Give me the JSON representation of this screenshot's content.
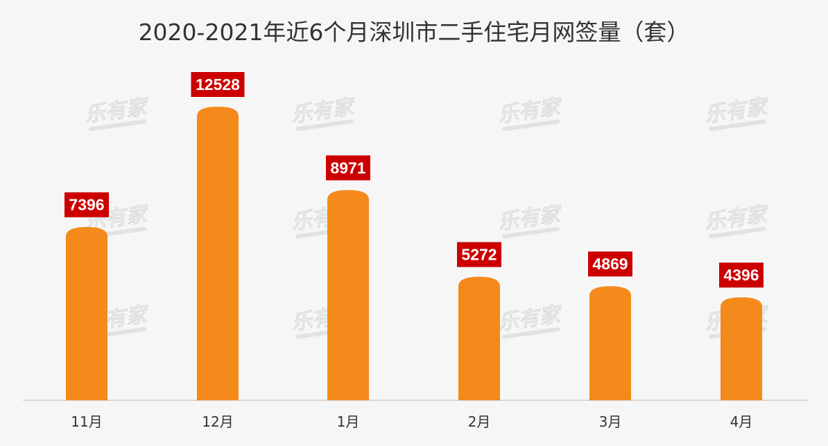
{
  "chart_data": {
    "type": "bar",
    "title": "2020-2021年近6个月深圳市二手住宅月网签量（套）",
    "categories": [
      "11月",
      "12月",
      "1月",
      "2月",
      "3月",
      "4月"
    ],
    "values": [
      7396,
      12528,
      8971,
      5272,
      4869,
      4396
    ],
    "data_labels": [
      "7396",
      "12528",
      "8971",
      "5272",
      "4869",
      "4396"
    ],
    "xlabel": "",
    "ylabel": "",
    "ylim": [
      0,
      13500
    ],
    "grid": false,
    "legend": "none",
    "colors": {
      "bar": "#f48a1c",
      "label_bg": "#cc0000",
      "label_text": "#ffffff",
      "axis": "#cfcfcf",
      "background": "#f6f6f6"
    }
  },
  "watermark": {
    "text": "乐有家"
  }
}
